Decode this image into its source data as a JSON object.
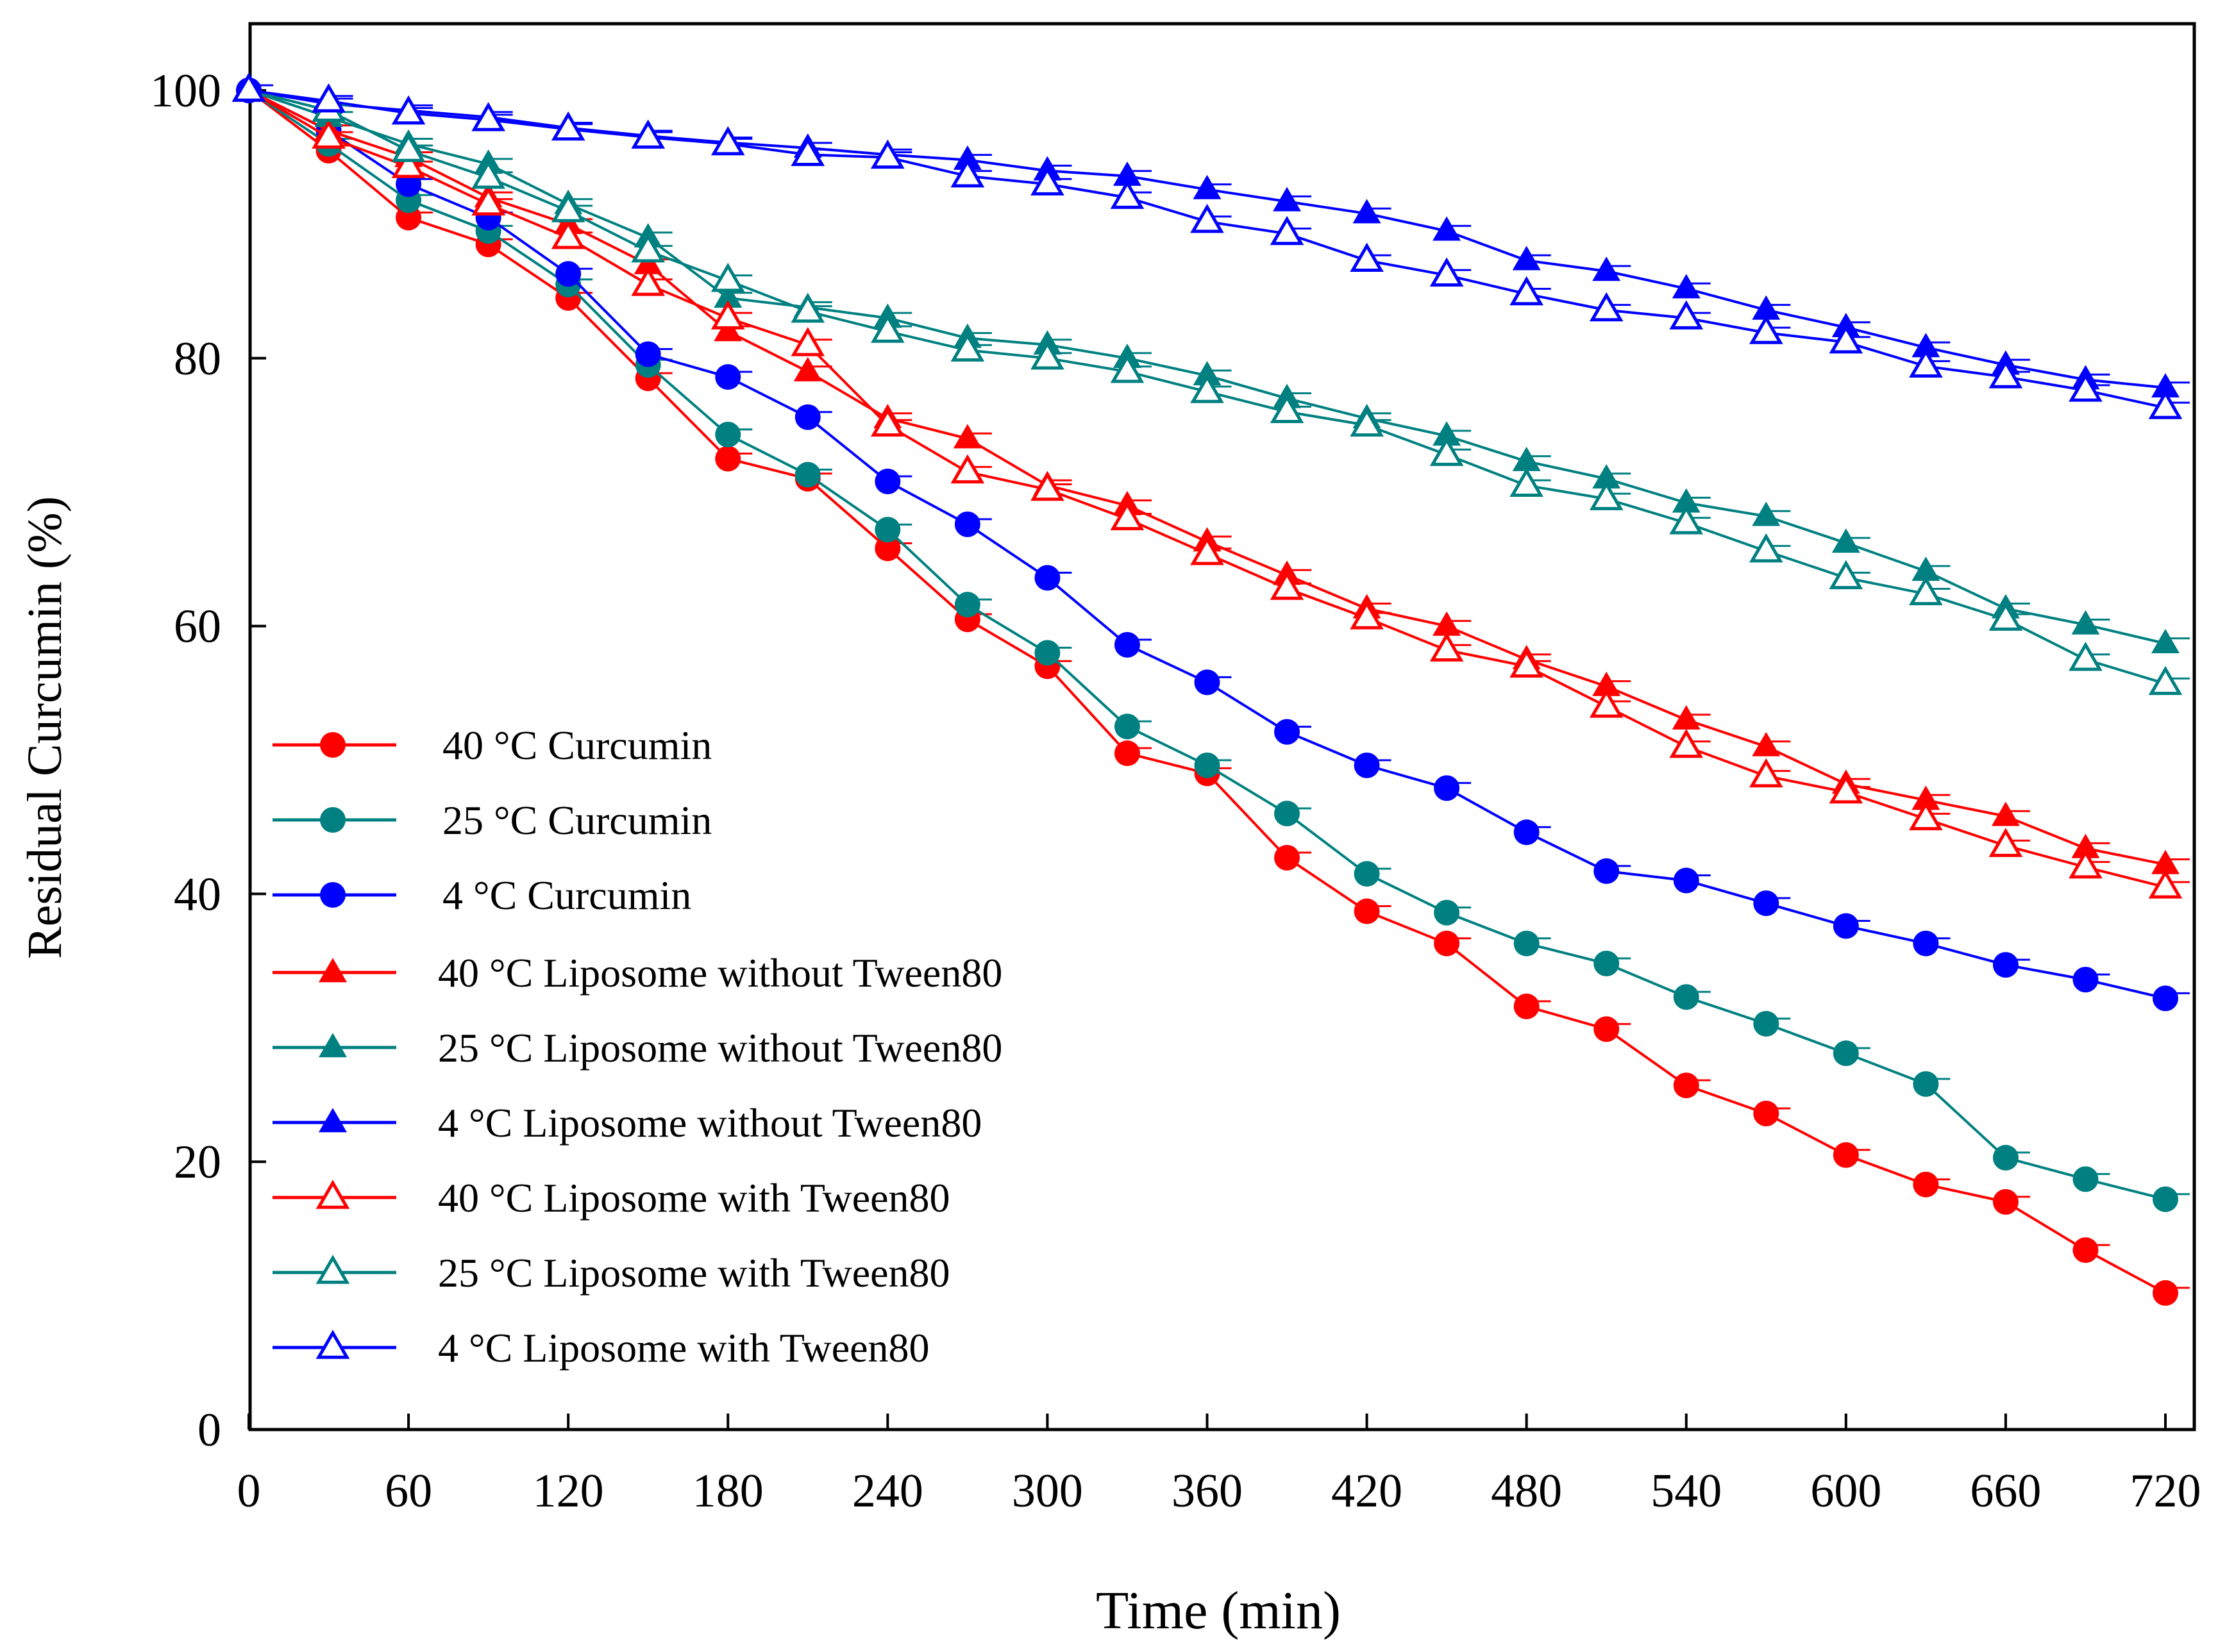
{
  "chart_data": {
    "type": "line",
    "xlabel": "Time (min)",
    "ylabel": "Residual Curcumin (%)",
    "xlim": [
      0,
      720
    ],
    "ylim": [
      0,
      105
    ],
    "xticks": [
      0,
      60,
      120,
      180,
      240,
      300,
      360,
      420,
      480,
      540,
      600,
      660,
      720
    ],
    "yticks": [
      0,
      20,
      40,
      60,
      80,
      100
    ],
    "grid": false,
    "legend_position": "bottom-left",
    "x": [
      0,
      30,
      60,
      90,
      120,
      150,
      180,
      210,
      240,
      270,
      300,
      330,
      360,
      390,
      420,
      450,
      480,
      510,
      540,
      570,
      600,
      630,
      660,
      690,
      720
    ],
    "series": [
      {
        "name": "40 °C Curcumin",
        "color": "#ff0000",
        "marker": "circle-filled",
        "values": [
          100,
          95.5,
          90.5,
          88.5,
          84.5,
          78.5,
          72.5,
          71,
          65.8,
          60.5,
          57,
          50.5,
          49,
          42.7,
          38.7,
          36.3,
          31.6,
          29.9,
          25.7,
          23.6,
          20.5,
          18.3,
          17,
          13.4,
          10.2
        ]
      },
      {
        "name": "25 °C Curcumin",
        "color": "#008080",
        "marker": "circle-filled",
        "values": [
          100,
          96,
          91.8,
          89.5,
          85.5,
          79.5,
          74.3,
          71.3,
          67.2,
          61.6,
          58,
          52.5,
          49.6,
          46,
          41.5,
          38.6,
          36.3,
          34.8,
          32.3,
          30.3,
          28.1,
          25.8,
          20.3,
          18.7,
          17.2
        ]
      },
      {
        "name": "4 °C Curcumin",
        "color": "#0000ff",
        "marker": "circle-filled",
        "values": [
          100,
          97,
          93,
          90.5,
          86.3,
          80.3,
          78.6,
          75.6,
          70.8,
          67.6,
          63.6,
          58.6,
          55.8,
          52.1,
          49.6,
          47.9,
          44.6,
          41.7,
          41,
          39.3,
          37.6,
          36.3,
          34.7,
          33.6,
          32.2
        ]
      },
      {
        "name": "40 °C Liposome without Tween80",
        "color": "#ff0000",
        "marker": "triangle-filled",
        "values": [
          100,
          97,
          95,
          92,
          90,
          87,
          82,
          79,
          75.5,
          74,
          70.5,
          69,
          66.3,
          63.8,
          61.3,
          60,
          57.5,
          55.5,
          53,
          51,
          48.2,
          47,
          45.8,
          43.4,
          42.2
        ]
      },
      {
        "name": "25 °C Liposome without Tween80",
        "color": "#008080",
        "marker": "triangle-filled",
        "values": [
          100,
          98,
          96,
          94.5,
          91.5,
          89,
          84.5,
          83.8,
          83,
          81.5,
          81,
          80,
          78.7,
          77,
          75.5,
          74.2,
          72.3,
          71,
          69.2,
          68.2,
          66.2,
          64.1,
          61.3,
          60.1,
          58.7
        ]
      },
      {
        "name": "4 °C Liposome without Tween80",
        "color": "#0000ff",
        "marker": "triangle-filled",
        "values": [
          100,
          99,
          98.5,
          98,
          97.2,
          96.6,
          96.1,
          95.7,
          95.2,
          94.8,
          94,
          93.6,
          92.6,
          91.7,
          90.8,
          89.5,
          87.3,
          86.5,
          85.2,
          83.6,
          82.3,
          80.8,
          79.5,
          78.4,
          77.8
        ]
      },
      {
        "name": "40 °C Liposome with Tween80",
        "color": "#ff0000",
        "marker": "triangle-open",
        "values": [
          100,
          96.5,
          94.3,
          91.5,
          89,
          85.5,
          83,
          81,
          75,
          71.5,
          70.2,
          68,
          65.4,
          62.8,
          60.6,
          58.2,
          57,
          54,
          51,
          48.8,
          47.6,
          45.6,
          43.6,
          42,
          40.5
        ]
      },
      {
        "name": "25 °C Liposome with Tween80",
        "color": "#008080",
        "marker": "triangle-open",
        "values": [
          100,
          98.5,
          95.5,
          93.5,
          91,
          88,
          85.8,
          83.5,
          82,
          80.6,
          80,
          79,
          77.5,
          76,
          75,
          72.8,
          70.5,
          69.5,
          67.7,
          65.6,
          63.6,
          62.4,
          60.5,
          57.5,
          55.7
        ]
      },
      {
        "name": "4 °C Liposome with Tween80",
        "color": "#0000ff",
        "marker": "triangle-open",
        "values": [
          100,
          99.2,
          98.3,
          97.8,
          97.1,
          96.5,
          96,
          95.2,
          95,
          93.6,
          93,
          92,
          90.2,
          89.3,
          87.3,
          86.2,
          84.8,
          83.6,
          83,
          81.9,
          81.2,
          79.4,
          78.6,
          77.6,
          76.3
        ]
      }
    ]
  }
}
